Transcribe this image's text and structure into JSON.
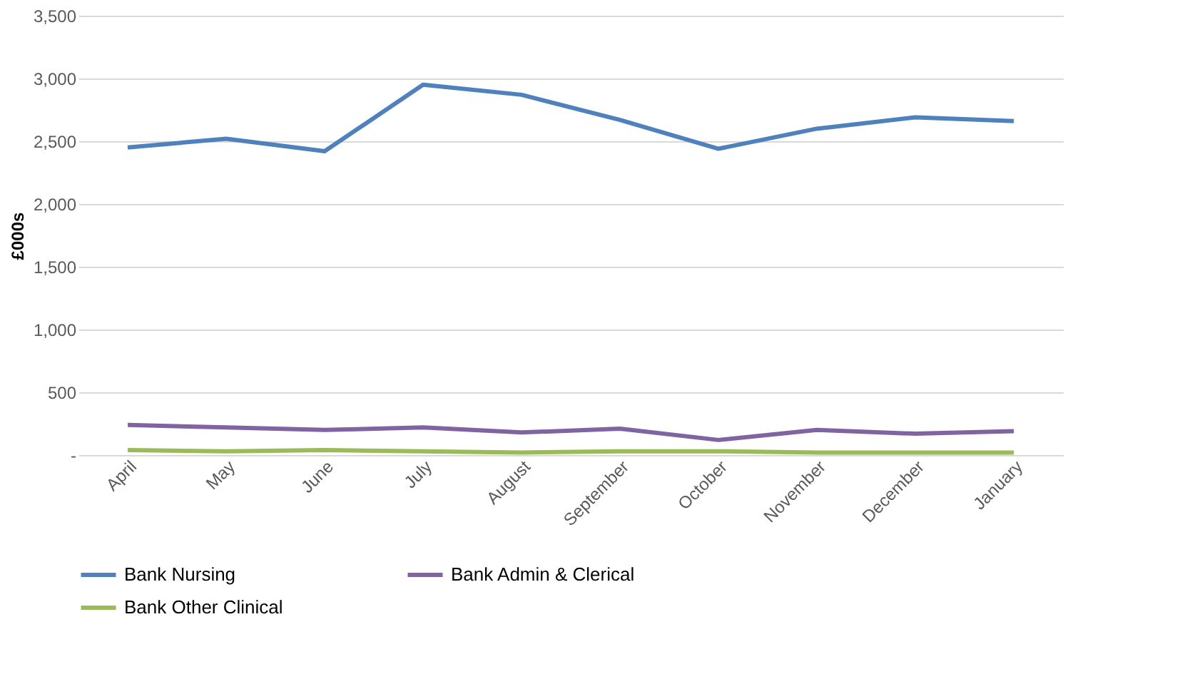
{
  "chart_data": {
    "type": "line",
    "ylabel": "£000s",
    "categories": [
      "April",
      "May",
      "June",
      "July",
      "August",
      "September",
      "October",
      "November",
      "December",
      "January"
    ],
    "series": [
      {
        "name": "Bank Nursing",
        "color": "#4f81bd",
        "values": [
          2450,
          2520,
          2420,
          2950,
          2870,
          2670,
          2440,
          2600,
          2690,
          2660
        ]
      },
      {
        "name": "Bank Admin & Clerical",
        "color": "#8064a2",
        "values": [
          240,
          220,
          200,
          220,
          180,
          210,
          120,
          200,
          170,
          190
        ]
      },
      {
        "name": "Bank Other Clinical",
        "color": "#9bbb59",
        "values": [
          40,
          30,
          40,
          30,
          20,
          30,
          30,
          20,
          20,
          20
        ]
      }
    ],
    "ylim": [
      0,
      3500
    ],
    "yticks": [
      {
        "value": 0,
        "label": "-"
      },
      {
        "value": 500,
        "label": "500"
      },
      {
        "value": 1000,
        "label": "1,000"
      },
      {
        "value": 1500,
        "label": "1,500"
      },
      {
        "value": 2000,
        "label": "2,000"
      },
      {
        "value": 2500,
        "label": "2,500"
      },
      {
        "value": 3000,
        "label": "3,000"
      },
      {
        "value": 3500,
        "label": "3,500"
      }
    ],
    "grid": "y",
    "legend": "bottom",
    "marker": "none",
    "line_style": "solid"
  }
}
